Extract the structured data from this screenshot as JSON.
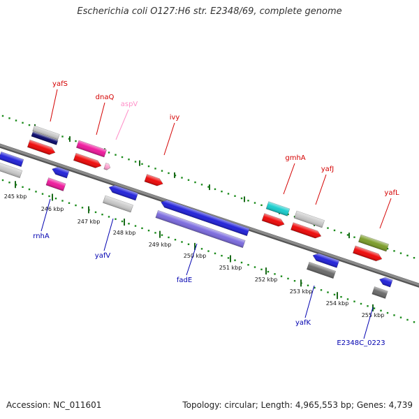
{
  "title": "Escherichia coli O127:H6 str. E2348/69, complete genome",
  "footer": {
    "accession": "Accession: NC_011601",
    "summary": "Topology: circular; Length: 4,965,553 bp; Genes: 4,739"
  },
  "colors": {
    "backbone": "#8a8a8a",
    "forward_dots": "#1a8a1a",
    "reverse_dots": "#1a8a1a",
    "label_forward": "#d40000",
    "label_reverse": "#0000b0",
    "label_pink": "#ff8fc8"
  },
  "ticks": [
    {
      "label": "245 kbp"
    },
    {
      "label": "246 kbp"
    },
    {
      "label": "247 kbp"
    },
    {
      "label": "248 kbp"
    },
    {
      "label": "249 kbp"
    },
    {
      "label": "250 kbp"
    },
    {
      "label": "251 kbp"
    },
    {
      "label": "252 kbp"
    },
    {
      "label": "253 kbp"
    },
    {
      "label": "254 kbp"
    },
    {
      "label": "255 kbp"
    }
  ],
  "gene_labels": [
    {
      "text": "yafS",
      "strand": "forward"
    },
    {
      "text": "dnaQ",
      "strand": "forward"
    },
    {
      "text": "aspV",
      "strand": "pink"
    },
    {
      "text": "ivy",
      "strand": "forward"
    },
    {
      "text": "gmhA",
      "strand": "forward"
    },
    {
      "text": "yafJ",
      "strand": "forward"
    },
    {
      "text": "yafL",
      "strand": "forward"
    },
    {
      "text": "rnhA",
      "strand": "reverse"
    },
    {
      "text": "yafV",
      "strand": "reverse"
    },
    {
      "text": "fadE",
      "strand": "reverse"
    },
    {
      "text": "yafK",
      "strand": "reverse"
    },
    {
      "text": "E2348C_0223",
      "strand": "reverse"
    }
  ],
  "features": [
    {
      "name": "feature-grey-left-top",
      "color": "#c8c8c8"
    },
    {
      "name": "feature-blue-left-top",
      "color": "#1a1ad8"
    },
    {
      "name": "feature-yafS-grey",
      "color": "#c8c8c8"
    },
    {
      "name": "feature-yafS-navy",
      "color": "#000066"
    },
    {
      "name": "feature-yafS-cds",
      "color": "#ee0000"
    },
    {
      "name": "feature-dnaQ-gene",
      "color": "#ee1199"
    },
    {
      "name": "feature-dnaQ-cds",
      "color": "#ee0000"
    },
    {
      "name": "feature-aspV-trna",
      "color": "#ffa0d0"
    },
    {
      "name": "feature-rnhA-cds",
      "color": "#1a1ad8"
    },
    {
      "name": "feature-rnhA-gene",
      "color": "#ee1199"
    },
    {
      "name": "feature-ivy-cds",
      "color": "#ee0000"
    },
    {
      "name": "feature-yafV-cds",
      "color": "#1a1ad8"
    },
    {
      "name": "feature-yafV-gene",
      "color": "#c8c8c8"
    },
    {
      "name": "feature-fadE-cds",
      "color": "#1a1ad8"
    },
    {
      "name": "feature-fadE-gene",
      "color": "#7766dd"
    },
    {
      "name": "feature-gmhA-gene",
      "color": "#11cccc"
    },
    {
      "name": "feature-gmhA-cds",
      "color": "#ee0000"
    },
    {
      "name": "feature-yafJ-gene",
      "color": "#c8c8c8"
    },
    {
      "name": "feature-yafJ-cds",
      "color": "#ee0000"
    },
    {
      "name": "feature-yafK-cds",
      "color": "#1a1ad8"
    },
    {
      "name": "feature-yafK-gene",
      "color": "#666666"
    },
    {
      "name": "feature-yafL-gene",
      "color": "#779922"
    },
    {
      "name": "feature-yafL-cds",
      "color": "#ee0000"
    },
    {
      "name": "feature-E2348C_0223-cds",
      "color": "#1a1ad8"
    },
    {
      "name": "feature-E2348C_0223-gene",
      "color": "#666666"
    }
  ]
}
